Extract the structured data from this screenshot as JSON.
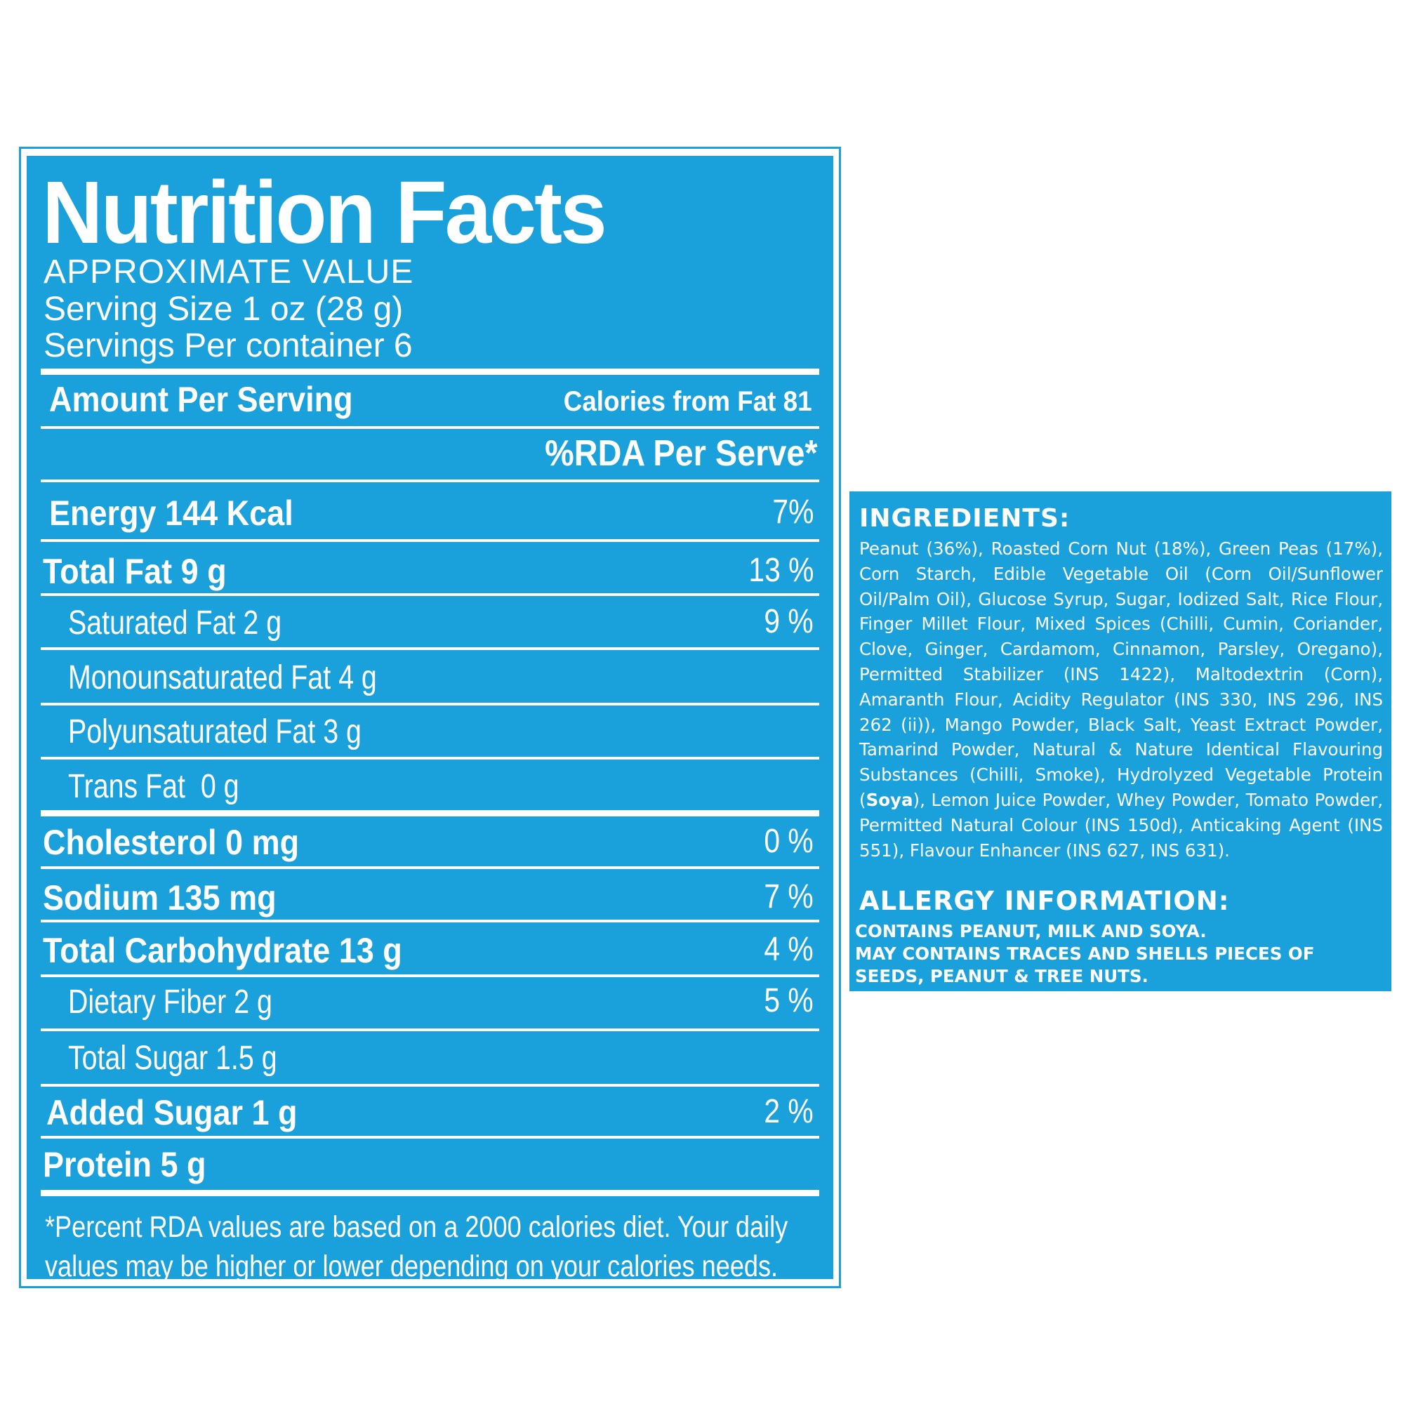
{
  "nutrition": {
    "title": "Nutrition Facts",
    "approx": "APPROXIMATE VALUE",
    "serving_size": "Serving Size 1 oz (28 g)",
    "servings_per_container": "Servings Per container 6",
    "amount_per_serving": "Amount Per Serving",
    "calories_from_fat": "Calories from Fat 81",
    "rda_header": "%RDA Per Serve*",
    "rows": [
      {
        "label": "Energy 144 Kcal",
        "pct": "7%"
      },
      {
        "label": "Total Fat 9 g",
        "pct": "13 %"
      },
      {
        "label": "Saturated Fat 2 g",
        "pct": "9 %"
      },
      {
        "label": "Monounsaturated Fat 4 g",
        "pct": ""
      },
      {
        "label": "Polyunsaturated Fat 3 g",
        "pct": ""
      },
      {
        "label": "Trans Fat  0 g",
        "pct": ""
      },
      {
        "label": "Cholesterol 0 mg",
        "pct": "0 %"
      },
      {
        "label": "Sodium 135 mg",
        "pct": "7 %"
      },
      {
        "label": "Total Carbohydrate 13 g",
        "pct": "4 %"
      },
      {
        "label": "Dietary Fiber 2 g",
        "pct": "5 %"
      },
      {
        "label": "Total Sugar 1.5 g",
        "pct": ""
      },
      {
        "label": "Added Sugar 1 g",
        "pct": "2 %"
      },
      {
        "label": "Protein 5 g",
        "pct": ""
      }
    ],
    "footnote_line1": "*Percent RDA values are based on a 2000 calories diet. Your daily",
    "footnote_line2": "values may be higher or lower depending on your calories needs."
  },
  "ingredients": {
    "title": "INGREDIENTS:",
    "text_before_bold": "Peanut (36%), Roasted Corn Nut (18%), Green Peas (17%), Corn Starch, Edible Vegetable Oil (Corn Oil/Sunflower Oil/Palm Oil), Glucose Syrup, Sugar, Iodized Salt, Rice Flour, Finger Millet Flour, Mixed Spices (Chilli, Cumin, Coriander, Clove, Ginger, Cardamom, Cinnamon, Parsley, Oregano), Permitted Stabilizer (INS 1422), Maltodextrin (Corn), Amaranth Flour, Acidity Regulator (INS 330, INS 296, INS 262 (ii)), Mango Powder, Black Salt, Yeast Extract Powder, Tamarind Powder, Natural & Nature Identical Flavouring Substances (Chilli, Smoke), Hydrolyzed Vegetable Protein (",
    "bold_word": "Soya",
    "text_after_bold": "), Lemon Juice Powder, Whey Powder, Tomato Powder, Permitted Natural Colour (INS 150d), Anticaking Agent (INS 551), Flavour Enhancer (INS 627, INS 631).",
    "allergy_title": "ALLERGY INFORMATION:",
    "allergy_lines": [
      "CONTAINS PEANUT, MILK AND SOYA.",
      "MAY CONTAINS TRACES AND SHELLS PIECES OF",
      "SEEDS, PEANUT & TREE NUTS."
    ]
  },
  "colors": {
    "panel_blue": "#1aa1dc",
    "text": "#ffffff",
    "background": "#ffffff"
  }
}
